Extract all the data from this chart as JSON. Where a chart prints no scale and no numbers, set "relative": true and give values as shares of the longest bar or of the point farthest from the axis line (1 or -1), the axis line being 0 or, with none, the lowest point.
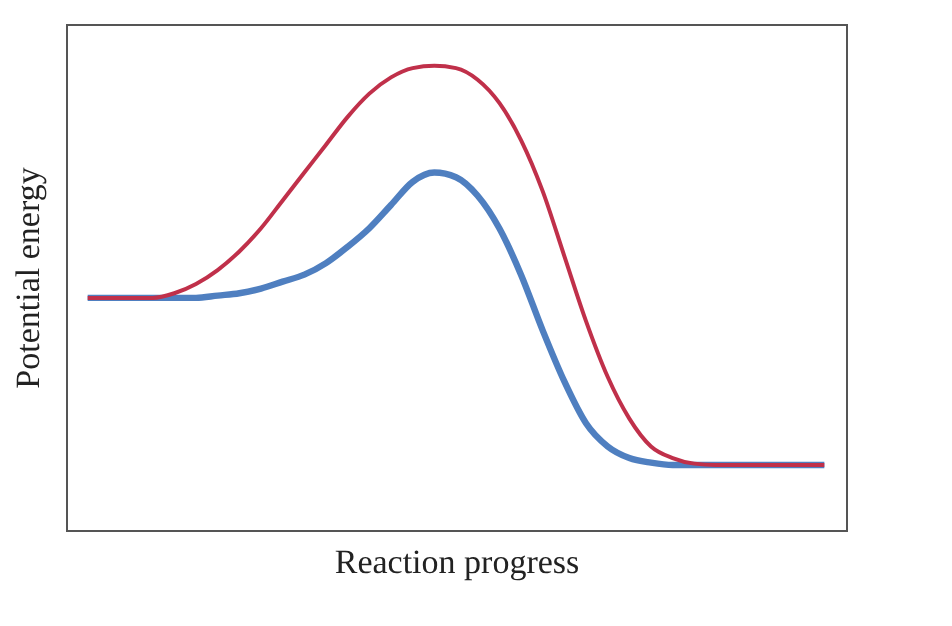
{
  "chart_data": {
    "type": "line",
    "relative": true,
    "xlabel": "Reaction progress",
    "ylabel": "Potential energy",
    "legend": false,
    "grid": false,
    "marker": "none",
    "line_style": "solid",
    "tick_labels": false,
    "categories": [
      null,
      null,
      null,
      null,
      null,
      null,
      null,
      null,
      null,
      null,
      null,
      null,
      null,
      null,
      null,
      null,
      null,
      null,
      null,
      null,
      null,
      null,
      null,
      null,
      null,
      null,
      null,
      null,
      null,
      null,
      null,
      null,
      null,
      null,
      null
    ],
    "series": [
      {
        "color": "#c0304a",
        "values": [
          0.5,
          0.5,
          0.5,
          0.5,
          0.51,
          0.53,
          0.56,
          0.6,
          0.65,
          0.71,
          0.77,
          0.83,
          0.89,
          0.94,
          0.975,
          0.995,
          1.0,
          0.995,
          0.97,
          0.92,
          0.84,
          0.73,
          0.59,
          0.45,
          0.33,
          0.24,
          0.18,
          0.155,
          0.143,
          0.14,
          0.14,
          0.14,
          0.14,
          0.14,
          0.14
        ]
      },
      {
        "color": "#4f7fc0",
        "values": [
          0.5,
          0.5,
          0.5,
          0.5,
          0.5,
          0.5,
          0.505,
          0.51,
          0.52,
          0.535,
          0.55,
          0.575,
          0.61,
          0.65,
          0.7,
          0.75,
          0.77,
          0.76,
          0.72,
          0.65,
          0.55,
          0.43,
          0.32,
          0.23,
          0.18,
          0.155,
          0.145,
          0.14,
          0.14,
          0.14,
          0.14,
          0.14,
          0.14,
          0.14,
          0.14
        ]
      }
    ]
  }
}
